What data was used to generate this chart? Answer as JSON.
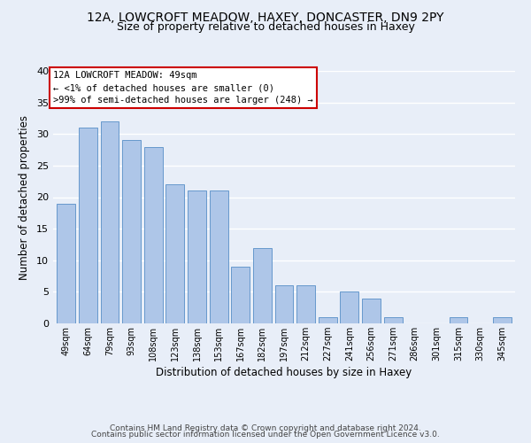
{
  "title1": "12A, LOWCROFT MEADOW, HAXEY, DONCASTER, DN9 2PY",
  "title2": "Size of property relative to detached houses in Haxey",
  "xlabel": "Distribution of detached houses by size in Haxey",
  "ylabel": "Number of detached properties",
  "bar_labels": [
    "49sqm",
    "64sqm",
    "79sqm",
    "93sqm",
    "108sqm",
    "123sqm",
    "138sqm",
    "153sqm",
    "167sqm",
    "182sqm",
    "197sqm",
    "212sqm",
    "227sqm",
    "241sqm",
    "256sqm",
    "271sqm",
    "286sqm",
    "301sqm",
    "315sqm",
    "330sqm",
    "345sqm"
  ],
  "bar_values": [
    19,
    31,
    32,
    29,
    28,
    22,
    21,
    21,
    9,
    12,
    6,
    6,
    1,
    5,
    4,
    1,
    0,
    0,
    1,
    0,
    1
  ],
  "bar_color": "#aec6e8",
  "bar_edge_color": "#6699cc",
  "ylim": [
    0,
    40
  ],
  "yticks": [
    0,
    5,
    10,
    15,
    20,
    25,
    30,
    35,
    40
  ],
  "annotation_line1": "12A LOWCROFT MEADOW: 49sqm",
  "annotation_line2": "← <1% of detached houses are smaller (0)",
  "annotation_line3": ">99% of semi-detached houses are larger (248) →",
  "box_edge_color": "#cc0000",
  "box_face_color": "#ffffff",
  "footer1": "Contains HM Land Registry data © Crown copyright and database right 2024.",
  "footer2": "Contains public sector information licensed under the Open Government Licence v3.0.",
  "background_color": "#e8eef8",
  "grid_color": "#ffffff",
  "title_fontsize": 10,
  "subtitle_fontsize": 9
}
